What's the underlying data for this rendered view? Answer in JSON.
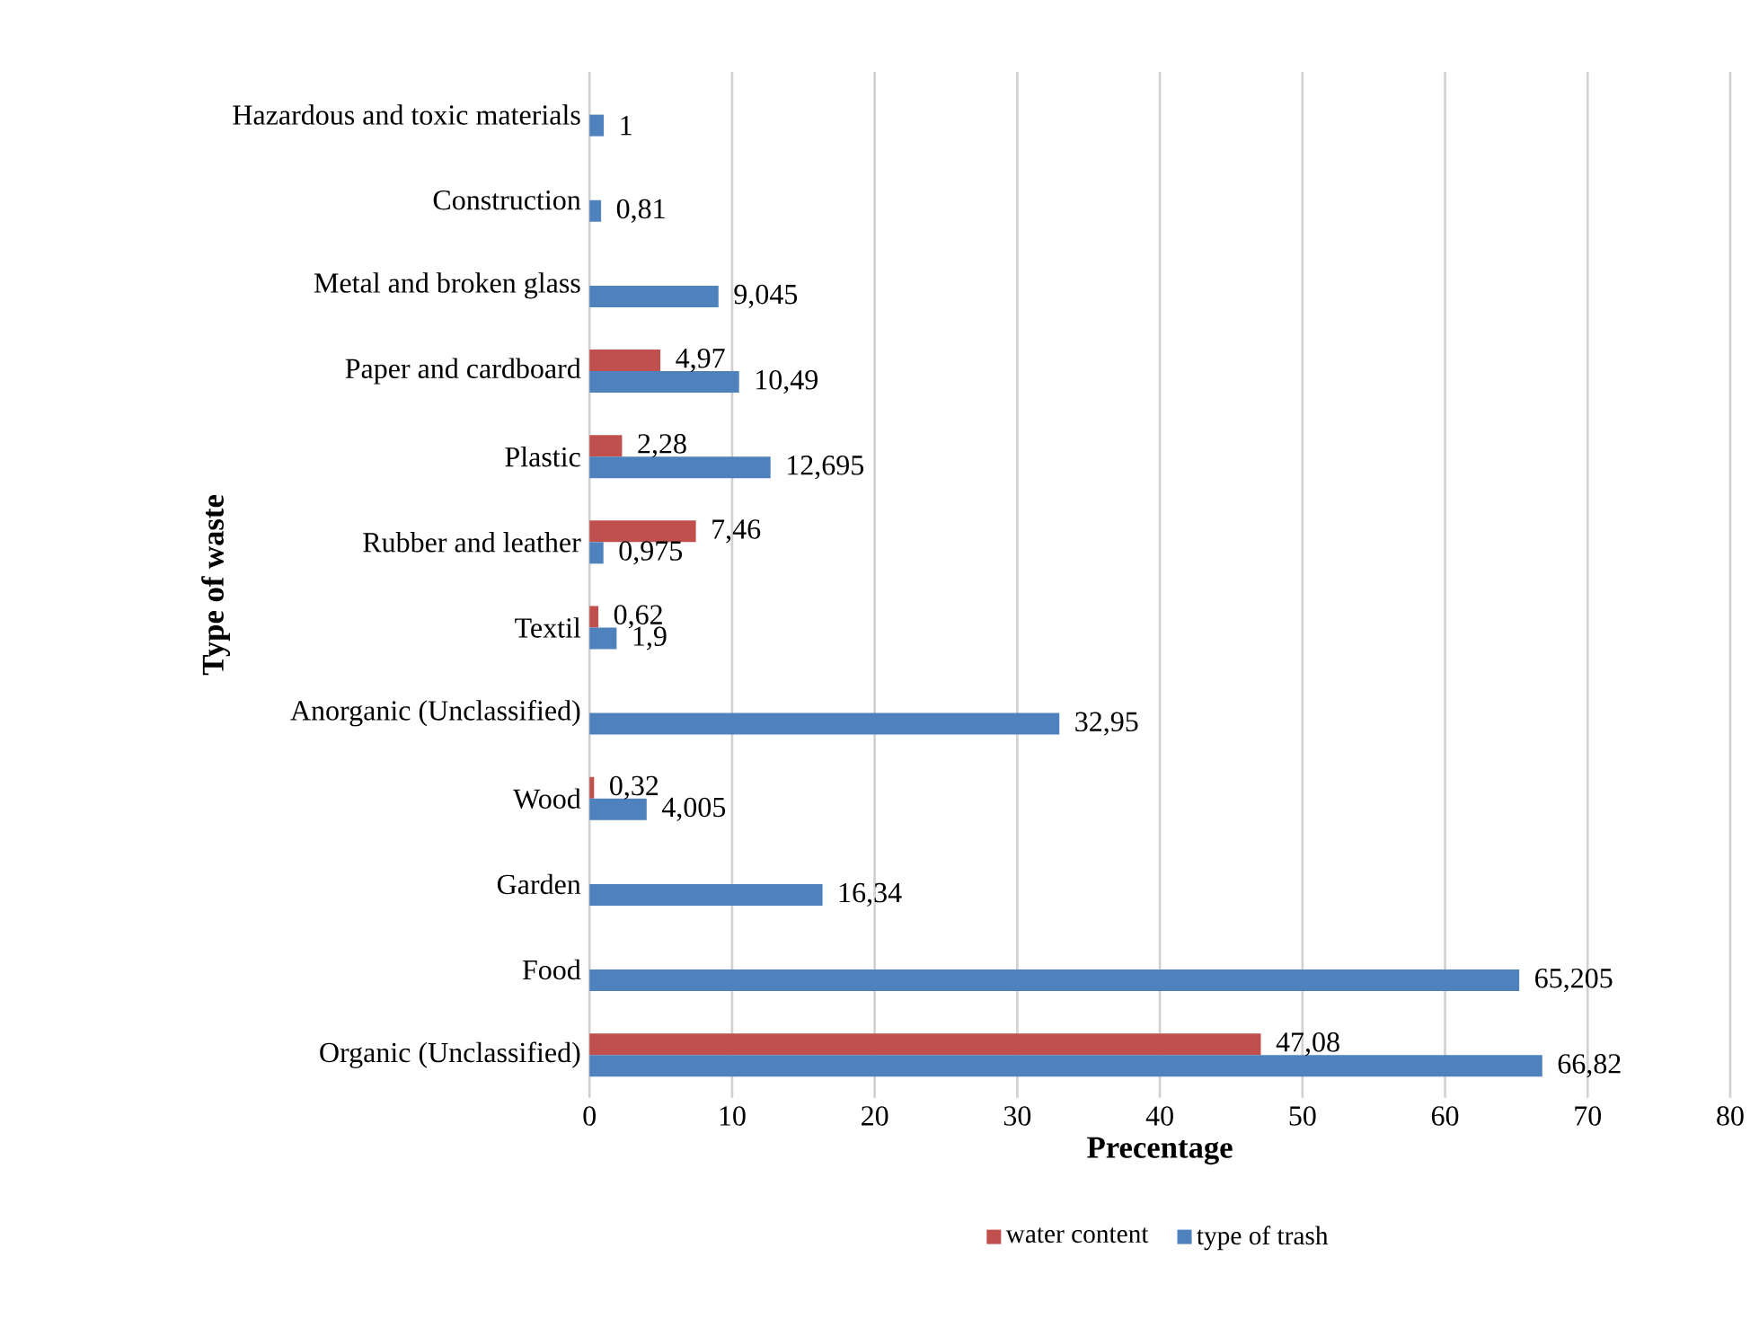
{
  "chart_data": {
    "type": "bar",
    "orientation": "horizontal",
    "xlabel": "Precentage",
    "ylabel": "Type of waste",
    "categories": [
      "Hazardous and toxic materials",
      "Construction",
      "Metal and broken glass",
      "Paper and cardboard",
      "Plastic",
      "Rubber and leather",
      "Textil",
      "Anorganic (Unclassified)",
      "Wood",
      "Garden",
      "Food",
      "Organic (Unclassified)"
    ],
    "series": [
      {
        "name": "water content",
        "color": "#c0504d",
        "values": [
          null,
          null,
          null,
          4.97,
          2.28,
          7.46,
          0.62,
          null,
          0.32,
          null,
          null,
          47.08
        ],
        "value_labels": [
          null,
          null,
          null,
          "4,97",
          "2,28",
          "7,46",
          "0,62",
          null,
          "0,32",
          null,
          null,
          "47,08"
        ]
      },
      {
        "name": "type of trash",
        "color": "#4f81bd",
        "values": [
          1,
          0.81,
          9.045,
          10.49,
          12.695,
          0.975,
          1.9,
          32.95,
          4.005,
          16.34,
          65.205,
          66.82
        ],
        "value_labels": [
          "1",
          "0,81",
          "9,045",
          "10,49",
          "12,695",
          "0,975",
          "1,9",
          "32,95",
          "4,005",
          "16,34",
          "65,205",
          "66,82"
        ]
      }
    ],
    "xlim": [
      0,
      80
    ],
    "xticks": [
      0,
      10,
      20,
      30,
      40,
      50,
      60,
      70,
      80
    ],
    "grid": "x",
    "legend": "bottom"
  }
}
